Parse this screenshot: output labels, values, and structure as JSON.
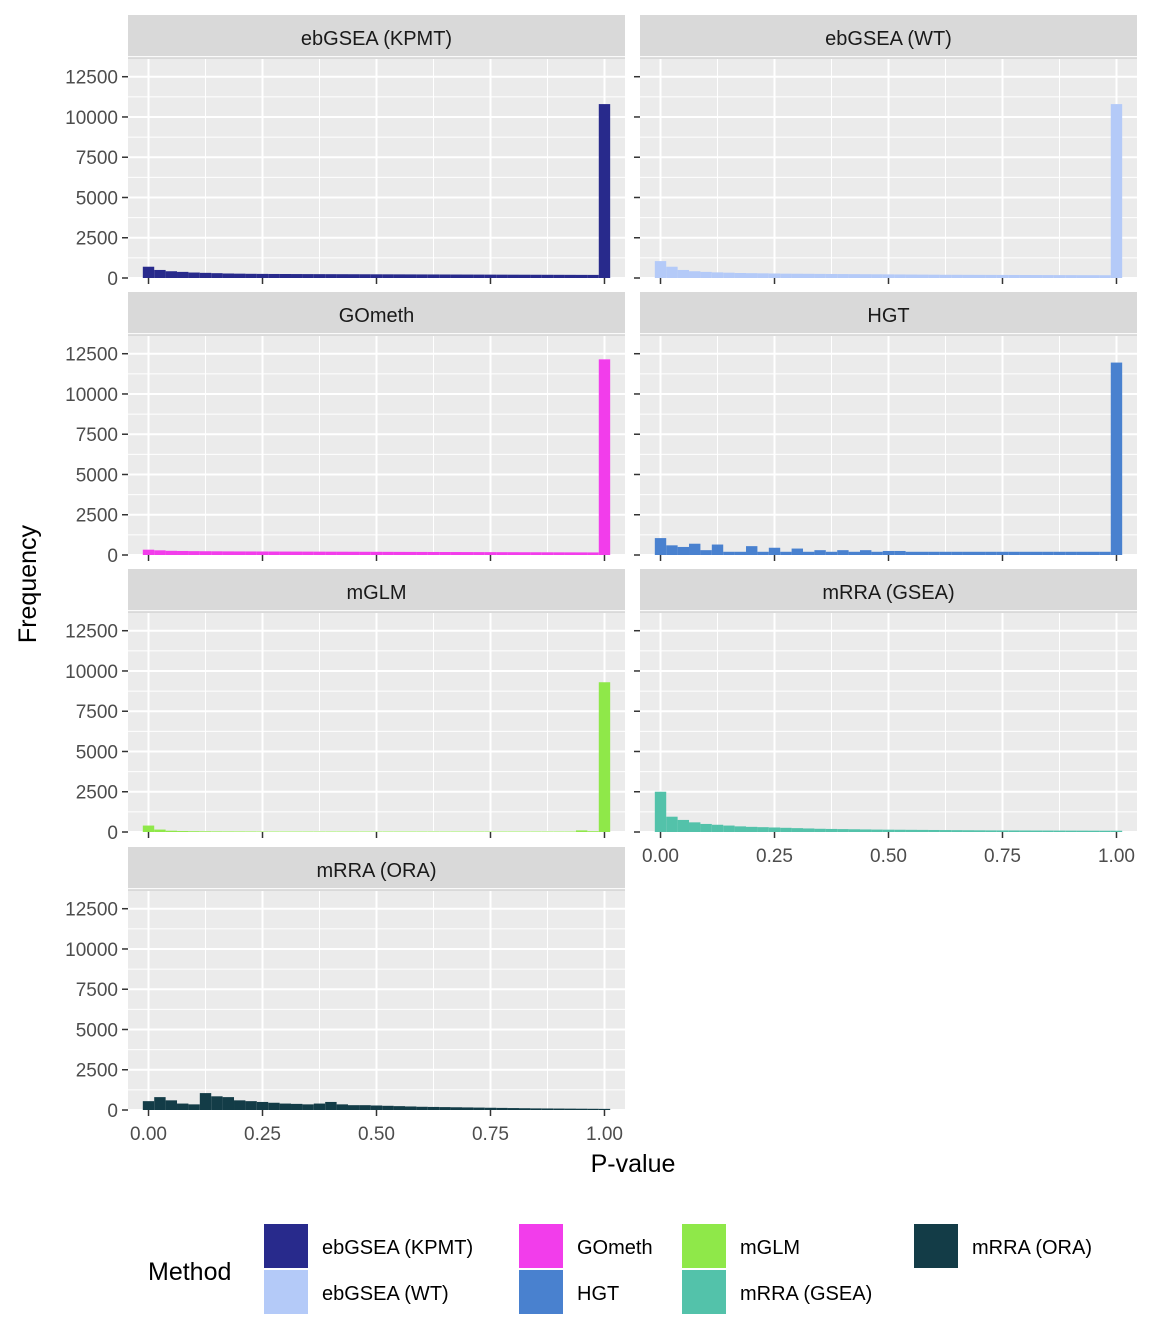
{
  "chart_data": {
    "type": "bar",
    "subtype": "faceted-histogram",
    "xlabel": "P-value",
    "ylabel": "Frequency",
    "xlim": [
      0,
      1
    ],
    "ylim": [
      0,
      12500
    ],
    "x_ticks": [
      "0.00",
      "0.25",
      "0.50",
      "0.75",
      "1.00"
    ],
    "y_ticks": [
      "0",
      "2500",
      "5000",
      "7500",
      "10000",
      "12500"
    ],
    "grid": true,
    "bin_width": 0.025,
    "legend": {
      "title": "Method",
      "placement": "bottom"
    },
    "series": [
      {
        "name": "ebGSEA (KPMT)",
        "color": "#282A8C",
        "values": [
          700,
          500,
          420,
          380,
          340,
          320,
          300,
          280,
          270,
          260,
          255,
          250,
          248,
          245,
          242,
          240,
          238,
          236,
          234,
          232,
          230,
          228,
          226,
          224,
          222,
          220,
          218,
          216,
          214,
          212,
          210,
          208,
          206,
          204,
          202,
          200,
          198,
          196,
          194,
          192,
          10800
        ]
      },
      {
        "name": "ebGSEA (WT)",
        "color": "#B4CAF8",
        "values": [
          1050,
          700,
          500,
          420,
          380,
          350,
          330,
          310,
          300,
          290,
          280,
          270,
          265,
          260,
          255,
          250,
          245,
          240,
          235,
          230,
          225,
          220,
          215,
          210,
          205,
          200,
          198,
          196,
          194,
          192,
          190,
          188,
          186,
          184,
          182,
          180,
          178,
          176,
          174,
          172,
          10800
        ]
      },
      {
        "name": "GOmeth",
        "color": "#F23DEB",
        "values": [
          330,
          290,
          260,
          250,
          240,
          235,
          230,
          225,
          222,
          220,
          218,
          216,
          214,
          212,
          210,
          208,
          206,
          204,
          202,
          200,
          198,
          196,
          194,
          192,
          190,
          188,
          186,
          184,
          182,
          180,
          178,
          176,
          174,
          172,
          170,
          168,
          166,
          164,
          162,
          160,
          12150
        ]
      },
      {
        "name": "HGT",
        "color": "#4981CF",
        "values": [
          1050,
          600,
          500,
          700,
          300,
          650,
          200,
          200,
          550,
          200,
          450,
          200,
          400,
          200,
          300,
          200,
          300,
          200,
          300,
          200,
          250,
          250,
          200,
          200,
          200,
          200,
          200,
          200,
          200,
          200,
          200,
          200,
          200,
          200,
          200,
          200,
          200,
          200,
          200,
          200,
          11950
        ]
      },
      {
        "name": "mGLM",
        "color": "#8FE849",
        "values": [
          400,
          150,
          80,
          60,
          50,
          45,
          40,
          38,
          36,
          34,
          32,
          30,
          30,
          30,
          30,
          30,
          30,
          30,
          30,
          30,
          30,
          30,
          30,
          30,
          30,
          30,
          30,
          30,
          30,
          30,
          30,
          30,
          30,
          30,
          30,
          30,
          30,
          30,
          100,
          50,
          9300
        ]
      },
      {
        "name": "mRRA (GSEA)",
        "color": "#53C2AA",
        "values": [
          2500,
          950,
          750,
          600,
          500,
          450,
          400,
          350,
          320,
          300,
          280,
          260,
          240,
          220,
          200,
          190,
          180,
          170,
          160,
          150,
          145,
          140,
          135,
          130,
          125,
          120,
          115,
          110,
          105,
          100,
          98,
          96,
          94,
          92,
          90,
          88,
          86,
          84,
          82,
          80,
          80
        ]
      },
      {
        "name": "mRRA (ORA)",
        "color": "#133C47",
        "values": [
          550,
          800,
          600,
          400,
          350,
          1050,
          850,
          800,
          600,
          550,
          500,
          450,
          400,
          380,
          350,
          400,
          500,
          350,
          300,
          300,
          280,
          260,
          240,
          220,
          200,
          190,
          180,
          170,
          160,
          150,
          140,
          130,
          120,
          110,
          100,
          95,
          90,
          85,
          80,
          75,
          70
        ]
      }
    ]
  }
}
